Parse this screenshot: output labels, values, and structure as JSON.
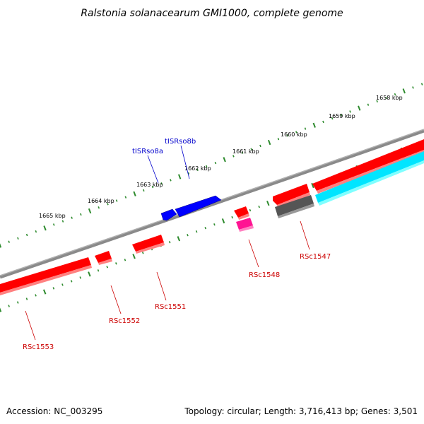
{
  "title": "Ralstonia solanacearum GMI1000, complete genome",
  "footer": {
    "accession": "Accession: NC_003295",
    "topology": "Topology: circular; Length: 3,716,413 bp; Genes: 3,501"
  },
  "colors": {
    "backbone": "#808080",
    "tick": "#2e8b2e",
    "gene_red": "#ff0000",
    "gene_blue": "#0000ff",
    "gene_cyan": "#00ffff",
    "gene_grey": "#555555",
    "gene_magenta": "#ff1493",
    "label_red": "#cc0000",
    "label_blue": "#0000cc"
  },
  "kbp_labels": [
    "1658 kbp",
    "1659 kbp",
    "1660 kbp",
    "1661 kbp",
    "1662 kbp",
    "1663 kbp",
    "1664 kbp",
    "1665 kbp"
  ],
  "features": [
    {
      "label": "tISRso8a",
      "color": "blue",
      "strand": "forward"
    },
    {
      "label": "tISRso8b",
      "color": "blue",
      "strand": "forward"
    },
    {
      "label": "RSc1547",
      "color": "red",
      "strand": "reverse"
    },
    {
      "label": "RSc1548",
      "color": "red",
      "strand": "reverse"
    },
    {
      "label": "RSc1551",
      "color": "red",
      "strand": "reverse"
    },
    {
      "label": "RSc1552",
      "color": "red",
      "strand": "reverse"
    },
    {
      "label": "RSc1553",
      "color": "red",
      "strand": "reverse"
    }
  ]
}
